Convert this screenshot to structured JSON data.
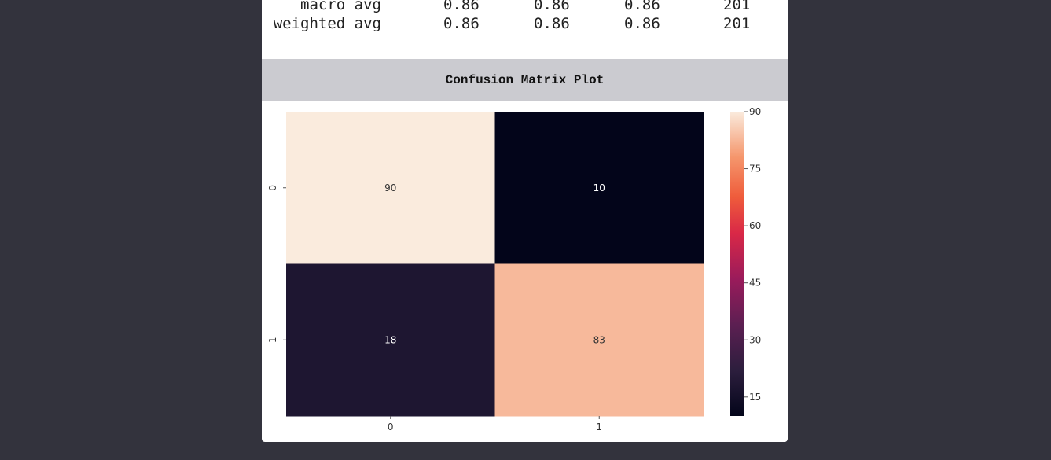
{
  "report": {
    "rows": [
      {
        "label": "macro avg",
        "precision": "0.86",
        "recall": "0.86",
        "f1": "0.86",
        "support": "201"
      },
      {
        "label": "weighted avg",
        "precision": "0.86",
        "recall": "0.86",
        "f1": "0.86",
        "support": "201"
      }
    ]
  },
  "section": {
    "title": "Confusion Matrix Plot"
  },
  "colors": {
    "background": "#33333d",
    "header_bg": "#cbcbd0"
  },
  "chart_data": {
    "type": "heatmap",
    "x_categories": [
      "0",
      "1"
    ],
    "y_categories": [
      "0",
      "1"
    ],
    "values": [
      [
        90,
        10
      ],
      [
        18,
        83
      ]
    ],
    "colorbar": {
      "min": 10,
      "max": 90,
      "ticks": [
        15,
        30,
        45,
        60,
        75,
        90
      ],
      "colormap": "rocket"
    }
  }
}
